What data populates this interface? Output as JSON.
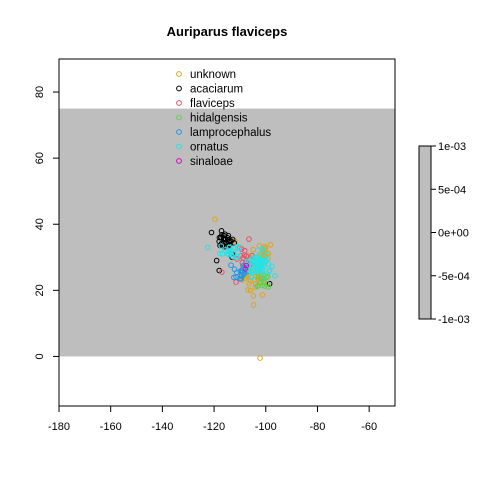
{
  "chart_data": {
    "type": "scatter",
    "title": "Auriparus flaviceps",
    "xlabel": "",
    "ylabel": "",
    "xlim": [
      -180,
      -50
    ],
    "ylim": [
      -15,
      90
    ],
    "x_ticks": [
      "-180",
      "-160",
      "-140",
      "-120",
      "-100",
      "-80",
      "-60"
    ],
    "y_ticks": [
      "0",
      "20",
      "40",
      "60",
      "80"
    ],
    "grid": false,
    "legend_position": "top-center",
    "background_region": {
      "x": [
        -180,
        -50
      ],
      "y": [
        0,
        75
      ],
      "color": "#bebebe"
    },
    "series": [
      {
        "name": "unknown",
        "color": "#DAA520",
        "clusters": [
          {
            "center": [
              -104,
              25
            ],
            "spread": [
              4,
              6
            ],
            "count": 45
          },
          {
            "center": [
              -100,
              32
            ],
            "spread": [
              2,
              2
            ],
            "count": 12
          }
        ],
        "points": [
          [
            -119.7,
            41.5
          ],
          [
            -102.2,
            -0.5
          ],
          [
            -112,
            35
          ],
          [
            -104,
            22
          ]
        ]
      },
      {
        "name": "acaciarum",
        "color": "#000000",
        "clusters": [
          {
            "center": [
              -116,
              35
            ],
            "spread": [
              3,
              2
            ],
            "count": 28
          }
        ],
        "points": [
          [
            -119,
            29
          ],
          [
            -118,
            26
          ],
          [
            -113,
            30
          ],
          [
            -98.5,
            22
          ],
          [
            -121,
            37.5
          ],
          [
            -113,
            31
          ]
        ]
      },
      {
        "name": "flaviceps",
        "color": "#DF536B",
        "clusters": [
          {
            "center": [
              -108,
              29
            ],
            "spread": [
              3,
              3
            ],
            "count": 14
          }
        ],
        "points": [
          [
            -111.5,
            22.5
          ],
          [
            -106.5,
            35.5
          ],
          [
            -110,
            23.5
          ],
          [
            -117,
            25.5
          ]
        ]
      },
      {
        "name": "hidalgensis",
        "color": "#61D04F",
        "clusters": [
          {
            "center": [
              -101,
              23
            ],
            "spread": [
              2,
              2
            ],
            "count": 14
          }
        ],
        "points": [
          [
            -99,
            21
          ],
          [
            -103,
            21.5
          ]
        ]
      },
      {
        "name": "lamprocephalus",
        "color": "#2297E6",
        "clusters": [
          {
            "center": [
              -110,
              26
            ],
            "spread": [
              2.5,
              2.5
            ],
            "count": 20
          }
        ],
        "points": [
          [
            -111.5,
            24
          ],
          [
            -109.5,
            23.5
          ]
        ]
      },
      {
        "name": "ornatus",
        "color": "#28E2E5",
        "clusters": [
          {
            "center": [
              -103,
              28
            ],
            "spread": [
              4,
              3
            ],
            "count": 70
          },
          {
            "center": [
              -114,
              32
            ],
            "spread": [
              3,
              2
            ],
            "count": 20
          }
        ],
        "points": [
          [
            -122.5,
            33
          ],
          [
            -101.5,
            32.5
          ],
          [
            -98.5,
            26
          ]
        ]
      },
      {
        "name": "sinaloae",
        "color": "#CD0BBC",
        "clusters": [],
        "points": [
          [
            -107.5,
            27.5
          ],
          [
            -108,
            26.5
          ]
        ]
      }
    ],
    "colorbar": {
      "ticks": [
        "1e-03",
        "5e-04",
        "0e+00",
        "-5e-04",
        "-1e-03"
      ],
      "range": [
        -0.001,
        0.001
      ],
      "fill_color": "#bebebe"
    }
  }
}
